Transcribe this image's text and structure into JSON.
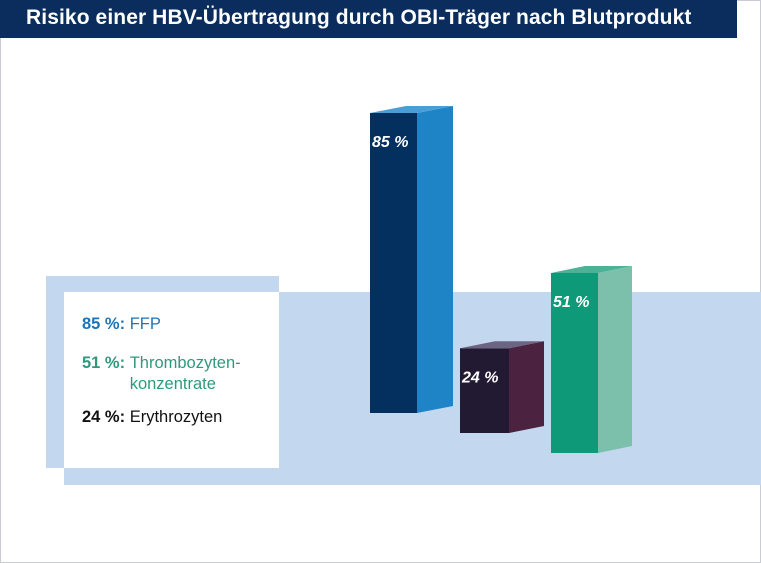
{
  "chart_data": {
    "type": "bar",
    "title": "Risiko einer HBV-Übertragung durch OBI-Träger nach Blutprodukt",
    "categories": [
      "FFP",
      "Erythrozyten",
      "Thrombozytenkonzentrate"
    ],
    "values": [
      85,
      24,
      51
    ],
    "unit": "%",
    "bar_labels": [
      "85 %",
      "24 %",
      "51 %"
    ],
    "legend": [
      {
        "pct": "85 %:",
        "label": "FFP",
        "color": "#1b75bb"
      },
      {
        "pct": "51 %:",
        "label": "Thrombozyten-\nkonzentrate",
        "color": "#2e9a7d"
      },
      {
        "pct": "24 %:",
        "label": "Erythrozyten",
        "color": "#111111"
      }
    ],
    "colors": {
      "ffp": {
        "front": "#04305f",
        "side": "#1f84c6",
        "top": "#4b9ed4"
      },
      "ery": {
        "front": "#221a33",
        "side": "#4b2340",
        "top": "#6d6484"
      },
      "thr": {
        "front": "#0e9a78",
        "side": "#7cc0ab",
        "top": "#4eb196"
      },
      "title_bg": "#0a2d5e",
      "band": "#c3d8ee"
    }
  }
}
